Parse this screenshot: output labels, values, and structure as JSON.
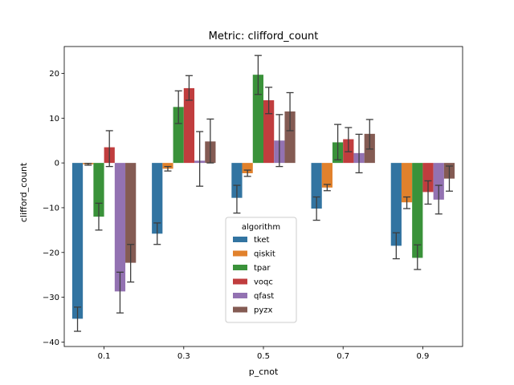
{
  "chart_data": {
    "type": "bar",
    "title": "Metric: clifford_count",
    "xlabel": "p_cnot",
    "ylabel": "clifford_count",
    "categories": [
      "0.1",
      "0.3",
      "0.5",
      "0.7",
      "0.9"
    ],
    "ylim": [
      -41,
      26
    ],
    "yticks": [
      -40,
      -30,
      -20,
      -10,
      0,
      10,
      20
    ],
    "grid": false,
    "legend": {
      "title": "algorithm",
      "placement": "lower-center"
    },
    "series": [
      {
        "name": "tket",
        "color": "#3274a1",
        "values": [
          -34.8,
          -15.8,
          -7.8,
          -10.2,
          -18.5
        ],
        "err_low": [
          -37.6,
          -18.2,
          -11.2,
          -12.8,
          -21.4
        ],
        "err_high": [
          -32.2,
          -13.4,
          -5.0,
          -7.6,
          -15.6
        ]
      },
      {
        "name": "qiskit",
        "color": "#e1812c",
        "values": [
          -0.3,
          -1.3,
          -2.3,
          -5.5,
          -8.8
        ],
        "err_low": [
          -0.5,
          -1.8,
          -3.0,
          -6.2,
          -10.2
        ],
        "err_high": [
          -0.1,
          -0.8,
          -1.6,
          -4.8,
          -7.6
        ]
      },
      {
        "name": "tpar",
        "color": "#3a923a",
        "values": [
          -12.0,
          12.5,
          19.7,
          4.6,
          -21.2
        ],
        "err_low": [
          -15.0,
          8.8,
          15.3,
          0.7,
          -23.8
        ],
        "err_high": [
          -9.0,
          16.1,
          24.0,
          8.6,
          -18.3
        ]
      },
      {
        "name": "voqc",
        "color": "#c03d3e",
        "values": [
          3.5,
          16.7,
          14.0,
          5.3,
          -6.5
        ],
        "err_low": [
          -0.8,
          14.0,
          11.0,
          2.5,
          -9.2
        ],
        "err_high": [
          7.2,
          19.5,
          16.9,
          7.9,
          -4.0
        ]
      },
      {
        "name": "qfast",
        "color": "#9372b2",
        "values": [
          -28.7,
          0.5,
          5.0,
          2.2,
          -8.2
        ],
        "err_low": [
          -33.5,
          -5.2,
          -0.8,
          -2.2,
          -11.4
        ],
        "err_high": [
          -24.4,
          7.0,
          10.8,
          6.4,
          -5.0
        ]
      },
      {
        "name": "pyzx",
        "color": "#845b53",
        "values": [
          -22.3,
          4.8,
          11.5,
          6.5,
          -3.5
        ],
        "err_low": [
          -26.6,
          0.0,
          7.2,
          3.1,
          -6.3
        ],
        "err_high": [
          -18.2,
          9.8,
          15.7,
          9.7,
          -0.7
        ]
      }
    ]
  }
}
